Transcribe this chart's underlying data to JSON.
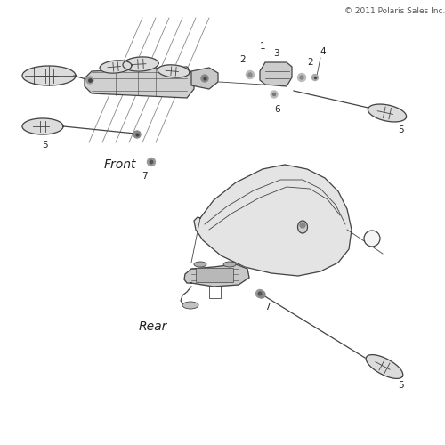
{
  "copyright": "© 2011 Polaris Sales Inc.",
  "background_color": "#ffffff",
  "line_color": "#444444",
  "fill_color": "#e8e8e8",
  "label_color": "#222222",
  "label_fontsize": 7.5,
  "front_label": "Front",
  "rear_label": "Rear"
}
